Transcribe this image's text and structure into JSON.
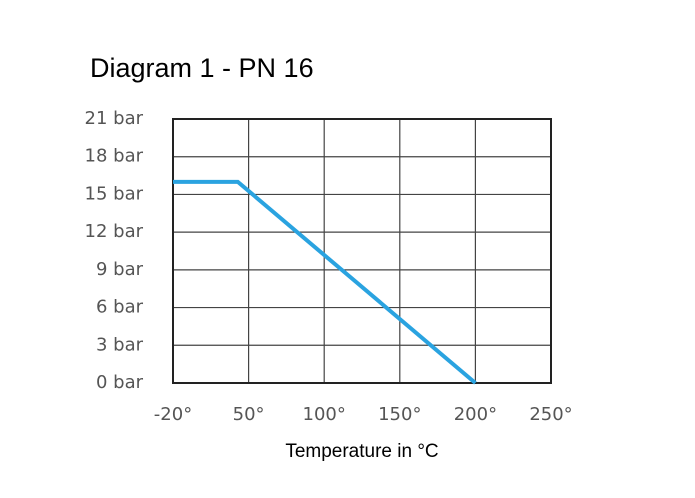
{
  "chart_data": {
    "type": "line",
    "title": "Diagram 1 - PN 16",
    "x_label": "Temperature in °C",
    "x": [
      -20,
      40,
      200
    ],
    "series": [
      {
        "name": "PN 16",
        "color": "#2aa3e0",
        "values": [
          16,
          16,
          0
        ]
      }
    ],
    "xlim": [
      -20,
      250
    ],
    "xticks": [
      {
        "value": -20,
        "label": "-20°"
      },
      {
        "value": 50,
        "label": "50°"
      },
      {
        "value": 100,
        "label": "100°"
      },
      {
        "value": 150,
        "label": "150°"
      },
      {
        "value": 200,
        "label": "200°"
      },
      {
        "value": 250,
        "label": "250°"
      }
    ],
    "ylim": [
      0,
      21
    ],
    "yticks": [
      {
        "value": 0,
        "label": "0 bar"
      },
      {
        "value": 3,
        "label": "3 bar"
      },
      {
        "value": 6,
        "label": "6 bar"
      },
      {
        "value": 9,
        "label": "9 bar"
      },
      {
        "value": 12,
        "label": "12 bar"
      },
      {
        "value": 15,
        "label": "15 bar"
      },
      {
        "value": 18,
        "label": "18 bar"
      },
      {
        "value": 21,
        "label": "21 bar"
      }
    ],
    "grid": true
  }
}
